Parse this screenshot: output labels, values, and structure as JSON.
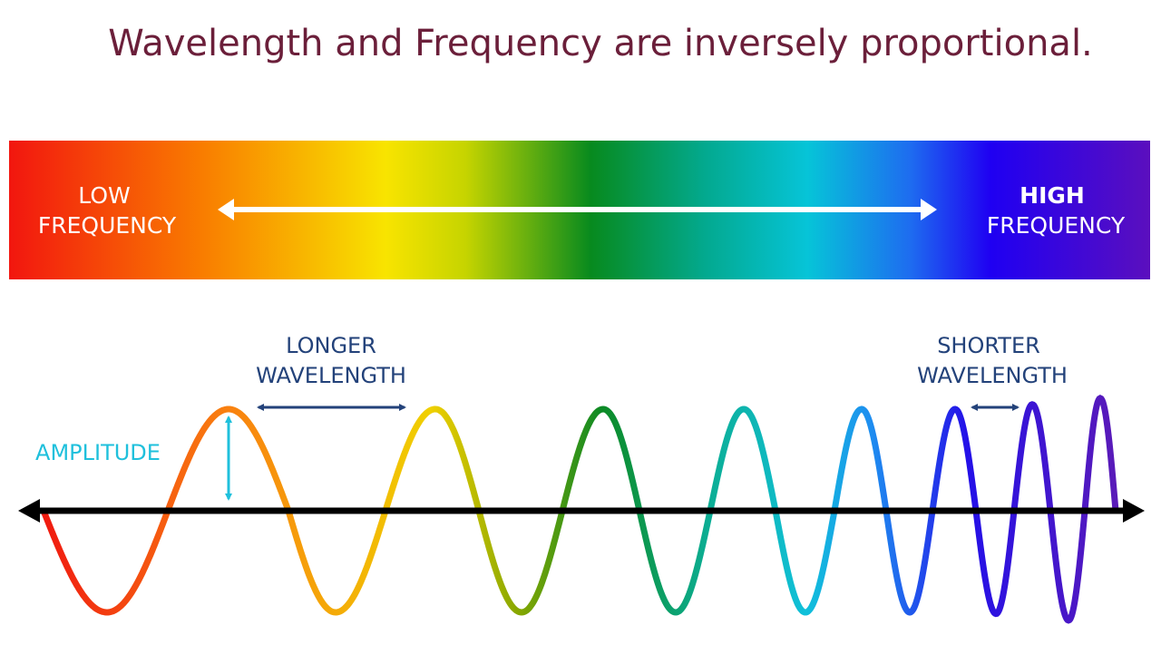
{
  "title": "Wavelength and Frequency are inversely proportional.",
  "spectrum": {
    "low_label": [
      "LOW",
      "FREQUENCY"
    ],
    "high_label": [
      "HIGH",
      "FREQUENCY"
    ]
  },
  "wave": {
    "longer_label": [
      "LONGER",
      "WAVELENGTH"
    ],
    "shorter_label": [
      "SHORTER",
      "WAVELENGTH"
    ],
    "amplitude_label": "AMPLITUDE"
  }
}
